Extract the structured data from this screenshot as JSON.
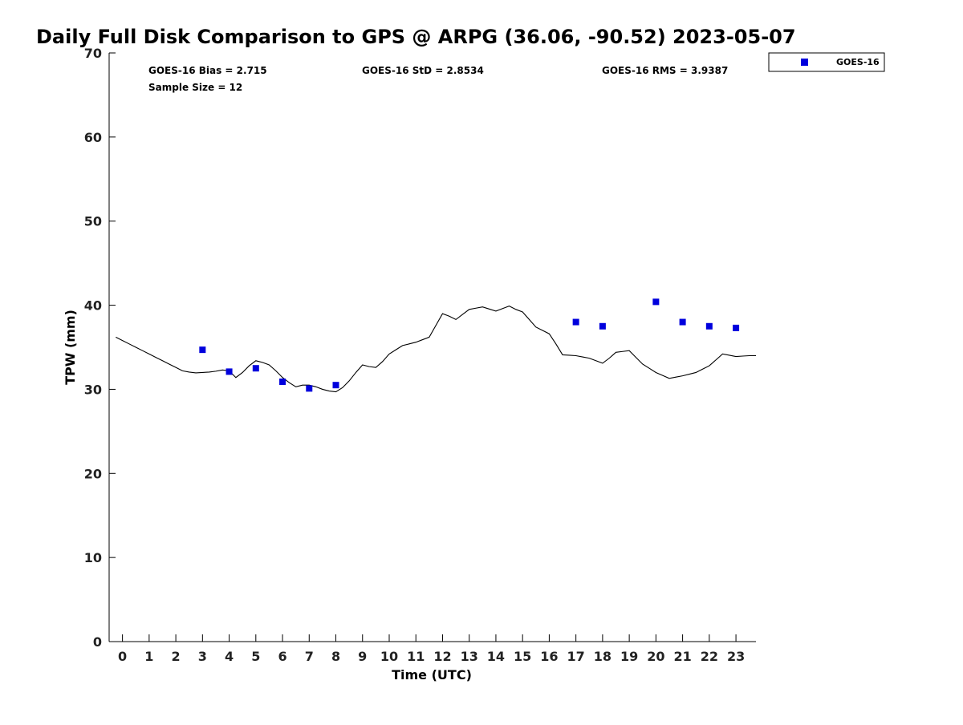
{
  "chart_data": {
    "type": "scatter",
    "title": "Daily Full Disk Comparison to GPS @ ARPG (36.06, -90.52) 2023-05-07",
    "xlabel": "Time (UTC)",
    "ylabel": "TPW (mm)",
    "xlim": [
      -0.5,
      23.75
    ],
    "ylim": [
      0,
      70
    ],
    "xticks": [
      0,
      1,
      2,
      3,
      4,
      5,
      6,
      7,
      8,
      9,
      10,
      11,
      12,
      13,
      14,
      15,
      16,
      17,
      18,
      19,
      20,
      21,
      22,
      23
    ],
    "yticks": [
      0,
      10,
      20,
      30,
      40,
      50,
      60,
      70
    ],
    "grid": false,
    "legend_position": "top-right outside",
    "stats": [
      {
        "text": "GOES-16 Bias = 2.715"
      },
      {
        "text": "GOES-16 StD = 2.8534"
      },
      {
        "text": "GOES-16 RMS = 3.9387"
      },
      {
        "text": "Sample Size = 12"
      }
    ],
    "series": [
      {
        "name": "GOES-16",
        "kind": "scatter",
        "marker": "square",
        "color": "#0000dd",
        "x": [
          3,
          4,
          5,
          6,
          7,
          8,
          17,
          18,
          20,
          21,
          22,
          23
        ],
        "y": [
          34.7,
          32.1,
          32.5,
          30.9,
          30.1,
          30.5,
          38.0,
          37.5,
          40.4,
          38.0,
          37.5,
          37.3
        ]
      },
      {
        "kind": "line",
        "color": "#000000",
        "x": [
          -0.25,
          0.0,
          0.25,
          0.5,
          0.75,
          1.0,
          1.25,
          1.5,
          1.75,
          2.0,
          2.25,
          2.5,
          2.75,
          3.0,
          3.25,
          3.5,
          3.75,
          4.0,
          4.25,
          4.5,
          4.75,
          5.0,
          5.25,
          5.5,
          5.75,
          6.0,
          6.25,
          6.5,
          6.75,
          7.0,
          7.25,
          7.5,
          7.75,
          8.0,
          8.25,
          8.5,
          8.75,
          9.0,
          9.25,
          9.5,
          9.75,
          10.0,
          10.25,
          10.5,
          10.75,
          11.0,
          11.25,
          11.5,
          11.75,
          12.0,
          12.25,
          12.5,
          12.75,
          13.0,
          13.25,
          13.5,
          13.75,
          14.0,
          14.25,
          14.5,
          14.75,
          15.0,
          15.25,
          15.5,
          15.75,
          16.0,
          16.25,
          16.5,
          16.75,
          17.0,
          17.25,
          17.5,
          17.75,
          18.0,
          18.25,
          18.5,
          18.75,
          19.0,
          19.25,
          19.5,
          19.75,
          20.0,
          20.25,
          20.5,
          20.75,
          21.0,
          21.25,
          21.5,
          21.75,
          22.0,
          22.25,
          22.5,
          22.75,
          23.0,
          23.25,
          23.5,
          23.75
        ],
        "y": [
          36.2,
          35.8,
          35.4,
          35.0,
          34.6,
          34.2,
          33.8,
          33.4,
          33.0,
          32.6,
          32.2,
          32.05,
          31.95,
          32.0,
          32.05,
          32.15,
          32.3,
          32.2,
          31.4,
          32.0,
          32.8,
          33.4,
          33.2,
          32.9,
          32.2,
          31.4,
          30.8,
          30.3,
          30.5,
          30.5,
          30.3,
          30.0,
          29.8,
          29.7,
          30.2,
          31.0,
          32.0,
          32.9,
          32.7,
          32.6,
          33.3,
          34.2,
          34.7,
          35.2,
          35.4,
          35.6,
          35.9,
          36.2,
          37.6,
          39.0,
          38.7,
          38.3,
          38.9,
          39.5,
          39.65,
          39.8,
          39.55,
          39.3,
          39.6,
          39.9,
          39.5,
          39.2,
          38.3,
          37.4,
          37.0,
          36.6,
          35.4,
          34.1,
          34.05,
          34.0,
          33.85,
          33.7,
          33.4,
          33.1,
          33.7,
          34.4,
          34.5,
          34.6,
          33.8,
          33.0,
          32.5,
          32.0,
          31.65,
          31.3,
          31.45,
          31.6,
          31.8,
          32.0,
          32.4,
          32.8,
          33.5,
          34.2,
          34.05,
          33.9,
          33.95,
          34.0,
          34.0
        ]
      }
    ]
  }
}
